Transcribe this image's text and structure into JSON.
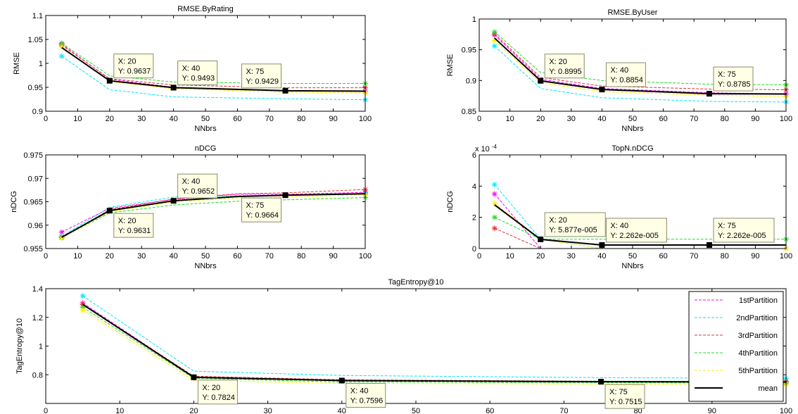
{
  "colors": {
    "1stPartition": "#ff00ff",
    "2ndPartition": "#00e5ff",
    "3rdPartition": "#e03030",
    "4thPartition": "#22dd22",
    "5thPartition": "#ffee00",
    "mean": "#000000",
    "datatip_bg": "#ffffe6",
    "datatip_border": "#8a8a70"
  },
  "legend": {
    "placement": "top-right",
    "entries": [
      "1stPartition",
      "2ndPartition",
      "3rdPartition",
      "4thPartition",
      "5thPartition",
      "mean"
    ]
  },
  "chart_data": [
    {
      "id": "rmse_rating",
      "type": "line",
      "title": "RMSE.ByRating",
      "xlabel": "NNbrs",
      "ylabel": "RMSE",
      "xlim": [
        0,
        100
      ],
      "ylim": [
        0.9,
        1.1
      ],
      "xticks": [
        "0",
        "10",
        "20",
        "30",
        "40",
        "50",
        "60",
        "70",
        "80",
        "90",
        "100"
      ],
      "yticks": [
        "0.9",
        "0.95",
        "1",
        "1.05",
        "1.1"
      ],
      "x": [
        5,
        20,
        40,
        75,
        100
      ],
      "series": [
        {
          "name": "1stPartition",
          "values": [
            1.04,
            0.967,
            0.95,
            0.943,
            0.941
          ]
        },
        {
          "name": "2ndPartition",
          "values": [
            1.015,
            0.945,
            0.93,
            0.926,
            0.924
          ]
        },
        {
          "name": "3rdPartition",
          "values": [
            1.038,
            0.968,
            0.955,
            0.949,
            0.949
          ]
        },
        {
          "name": "4thPartition",
          "values": [
            1.042,
            0.974,
            0.961,
            0.958,
            0.958
          ]
        },
        {
          "name": "5thPartition",
          "values": [
            1.035,
            0.962,
            0.947,
            0.94,
            0.938
          ]
        },
        {
          "name": "mean",
          "values": [
            1.033,
            0.9637,
            0.9493,
            0.9429,
            0.942
          ]
        }
      ],
      "datatips": [
        {
          "x": 20,
          "y": 0.9637,
          "line1": "X: 20",
          "line2": "Y: 0.9637"
        },
        {
          "x": 40,
          "y": 0.9493,
          "line1": "X: 40",
          "line2": "Y: 0.9493"
        },
        {
          "x": 75,
          "y": 0.9429,
          "line1": "X: 75",
          "line2": "Y: 0.9429"
        }
      ]
    },
    {
      "id": "rmse_user",
      "type": "line",
      "title": "RMSE.ByUser",
      "xlabel": "NNbrs",
      "ylabel": "RMSE",
      "xlim": [
        0,
        100
      ],
      "ylim": [
        0.85,
        1.0
      ],
      "xticks": [
        "0",
        "10",
        "20",
        "30",
        "40",
        "50",
        "60",
        "70",
        "80",
        "90",
        "100"
      ],
      "yticks": [
        "0.85",
        "0.9",
        "0.95",
        "1"
      ],
      "x": [
        5,
        20,
        40,
        75,
        100
      ],
      "series": [
        {
          "name": "1stPartition",
          "values": [
            0.974,
            0.902,
            0.887,
            0.88,
            0.878
          ]
        },
        {
          "name": "2ndPartition",
          "values": [
            0.956,
            0.887,
            0.872,
            0.866,
            0.865
          ]
        },
        {
          "name": "3rdPartition",
          "values": [
            0.976,
            0.905,
            0.891,
            0.886,
            0.885
          ]
        },
        {
          "name": "4thPartition",
          "values": [
            0.979,
            0.913,
            0.9,
            0.894,
            0.893
          ]
        },
        {
          "name": "5thPartition",
          "values": [
            0.965,
            0.896,
            0.882,
            0.876,
            0.874
          ]
        },
        {
          "name": "mean",
          "values": [
            0.969,
            0.8995,
            0.8854,
            0.8785,
            0.878
          ]
        }
      ],
      "datatips": [
        {
          "x": 20,
          "y": 0.8995,
          "line1": "X: 20",
          "line2": "Y: 0.8995"
        },
        {
          "x": 40,
          "y": 0.8854,
          "line1": "X: 40",
          "line2": "Y: 0.8854"
        },
        {
          "x": 75,
          "y": 0.8785,
          "line1": "X: 75",
          "line2": "Y: 0.8785"
        }
      ]
    },
    {
      "id": "ndcg",
      "type": "line",
      "title": "nDCG",
      "xlabel": "NNbrs",
      "ylabel": "nDCG",
      "xlim": [
        0,
        100
      ],
      "ylim": [
        0.955,
        0.975
      ],
      "xticks": [
        "0",
        "10",
        "20",
        "30",
        "40",
        "50",
        "60",
        "70",
        "80",
        "90",
        "100"
      ],
      "yticks": [
        "0.955",
        "0.96",
        "0.965",
        "0.97",
        "0.975"
      ],
      "x": [
        5,
        20,
        40,
        60,
        75,
        100
      ],
      "series": [
        {
          "name": "1stPartition",
          "values": [
            0.9585,
            0.9636,
            0.9655,
            0.9666,
            0.9666,
            0.967
          ]
        },
        {
          "name": "2ndPartition",
          "values": [
            0.9576,
            0.9638,
            0.966,
            0.9663,
            0.9664,
            0.9668
          ]
        },
        {
          "name": "3rdPartition",
          "values": [
            0.9574,
            0.9633,
            0.9656,
            0.9667,
            0.9669,
            0.9676
          ]
        },
        {
          "name": "4thPartition",
          "values": [
            0.9573,
            0.9626,
            0.9643,
            0.9651,
            0.9654,
            0.9659
          ]
        },
        {
          "name": "5thPartition",
          "values": [
            0.9572,
            0.9628,
            0.965,
            0.9658,
            0.966,
            0.9665
          ]
        },
        {
          "name": "mean",
          "values": [
            0.9574,
            0.9631,
            0.9652,
            0.9661,
            0.9664,
            0.9667
          ]
        }
      ],
      "datatips": [
        {
          "x": 20,
          "y": 0.9631,
          "line1": "X: 20",
          "line2": "Y: 0.9631"
        },
        {
          "x": 40,
          "y": 0.9652,
          "line1": "X: 40",
          "line2": "Y: 0.9652"
        },
        {
          "x": 75,
          "y": 0.9664,
          "line1": "X: 75",
          "line2": "Y: 0.9664"
        }
      ]
    },
    {
      "id": "topn_ndcg",
      "type": "line",
      "title": "TopN.nDCG",
      "xlabel": "NNbrs",
      "ylabel": "nDCG",
      "scale_label": "x 10",
      "scale_exponent": "-4",
      "xlim": [
        0,
        100
      ],
      "ylim": [
        0,
        6
      ],
      "xticks": [
        "0",
        "10",
        "20",
        "30",
        "40",
        "50",
        "60",
        "70",
        "80",
        "90",
        "100"
      ],
      "yticks": [
        "0",
        "2",
        "4",
        "6"
      ],
      "x": [
        5,
        20,
        40,
        75,
        100
      ],
      "series": [
        {
          "name": "1stPartition",
          "values": [
            3.5,
            0.0,
            0.0,
            0.0,
            0.0
          ]
        },
        {
          "name": "2ndPartition",
          "values": [
            4.1,
            0.6,
            0.0,
            0.0,
            0.0
          ]
        },
        {
          "name": "3rdPartition",
          "values": [
            1.3,
            0.0,
            0.0,
            0.0,
            0.0
          ]
        },
        {
          "name": "4thPartition",
          "values": [
            2.0,
            0.6,
            0.6,
            0.6,
            0.6
          ]
        },
        {
          "name": "5thPartition",
          "values": [
            2.9,
            0.6,
            0.0,
            0.0,
            0.0
          ]
        },
        {
          "name": "mean",
          "values": [
            2.8,
            0.5877,
            0.2262,
            0.2262,
            0.2262
          ]
        }
      ],
      "datatips": [
        {
          "x": 20,
          "y": 0.5877,
          "line1": "X: 20",
          "line2": "Y: 5.877e-005"
        },
        {
          "x": 40,
          "y": 0.2262,
          "line1": "X: 40",
          "line2": "Y: 2.262e-005"
        },
        {
          "x": 75,
          "y": 0.2262,
          "line1": "X: 75",
          "line2": "Y: 2.262e-005"
        }
      ]
    },
    {
      "id": "tag_entropy",
      "type": "line",
      "title": "TagEntropy@10",
      "xlabel": "NNbrs",
      "ylabel": "TagEntropy@10",
      "xlim": [
        0,
        100
      ],
      "ylim": [
        0.6,
        1.4
      ],
      "xticks": [
        "0",
        "10",
        "20",
        "30",
        "40",
        "50",
        "60",
        "70",
        "80",
        "90",
        "100"
      ],
      "yticks": [
        "0.8",
        "1",
        "1.2",
        "1.4"
      ],
      "x": [
        5,
        20,
        40,
        75,
        100
      ],
      "series": [
        {
          "name": "1stPartition",
          "values": [
            1.3,
            0.785,
            0.76,
            0.752,
            0.75
          ]
        },
        {
          "name": "2ndPartition",
          "values": [
            1.35,
            0.825,
            0.795,
            0.78,
            0.775
          ]
        },
        {
          "name": "3rdPartition",
          "values": [
            1.29,
            0.79,
            0.765,
            0.755,
            0.752
          ]
        },
        {
          "name": "4thPartition",
          "values": [
            1.27,
            0.775,
            0.75,
            0.745,
            0.742
          ]
        },
        {
          "name": "5thPartition",
          "values": [
            1.25,
            0.76,
            0.74,
            0.735,
            0.732
          ]
        },
        {
          "name": "mean",
          "values": [
            1.29,
            0.7824,
            0.7596,
            0.7515,
            0.75
          ]
        }
      ],
      "datatips": [
        {
          "x": 20,
          "y": 0.7824,
          "line1": "X: 20",
          "line2": "Y: 0.7824"
        },
        {
          "x": 40,
          "y": 0.7596,
          "line1": "X: 40",
          "line2": "Y: 0.7596"
        },
        {
          "x": 75,
          "y": 0.7515,
          "line1": "X: 75",
          "line2": "Y: 0.7515"
        }
      ]
    }
  ]
}
